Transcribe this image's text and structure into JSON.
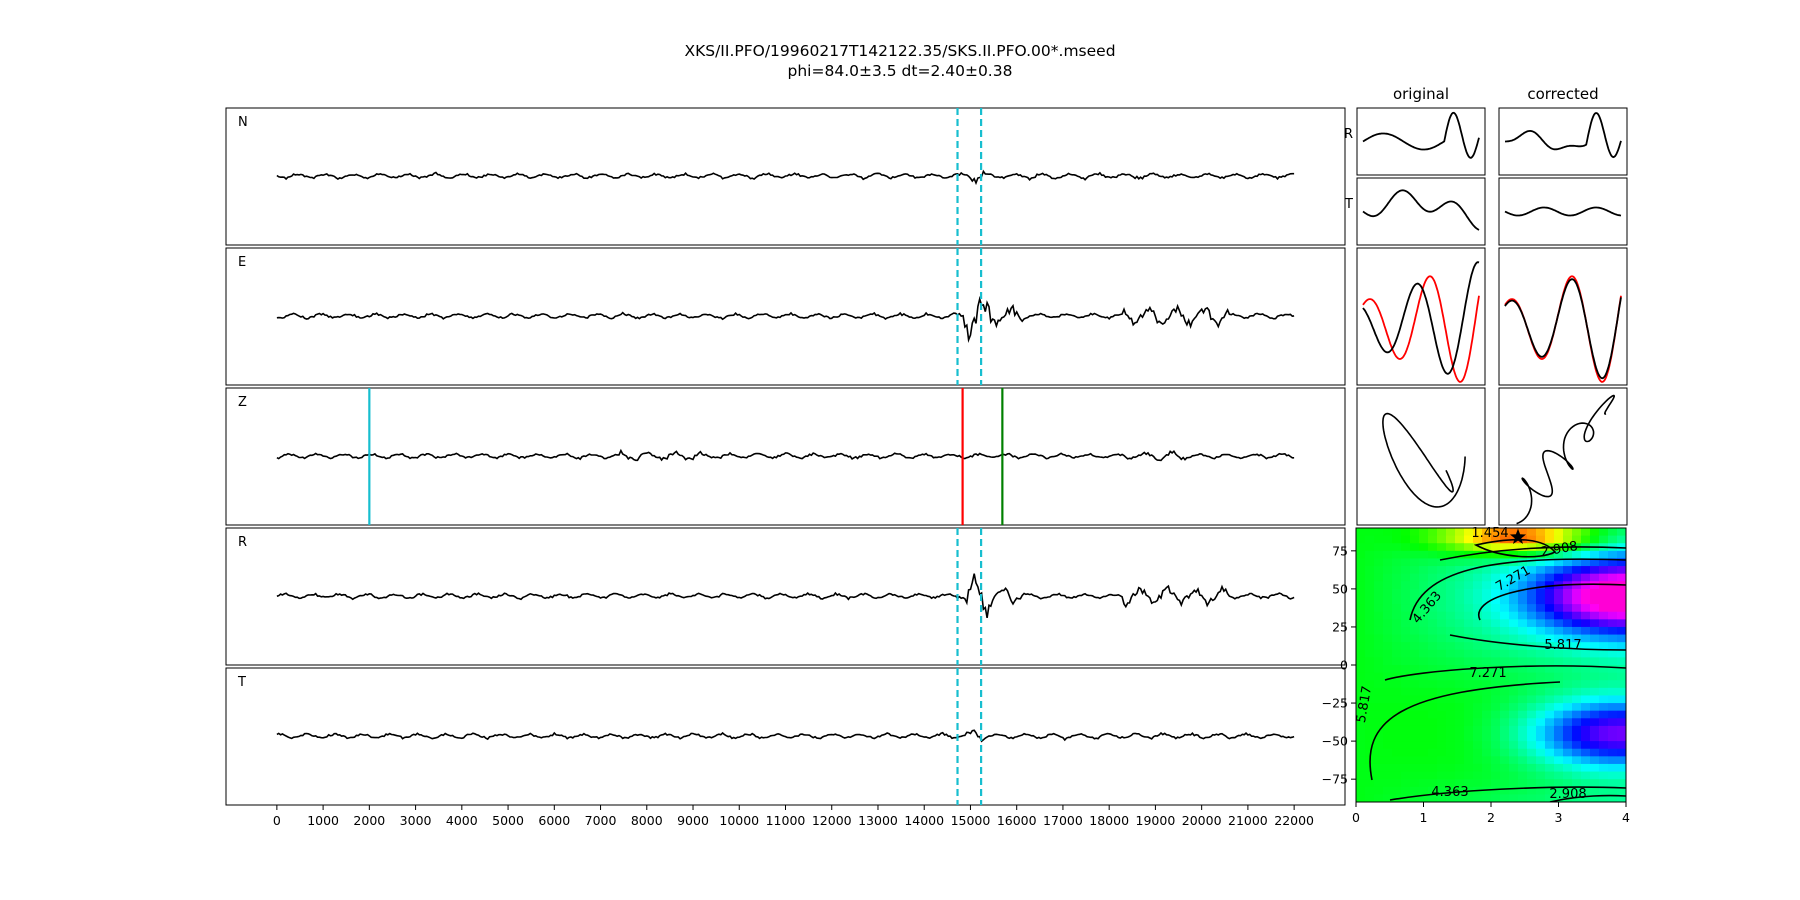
{
  "title": "XKS/II.PFO/19960217T142122.35/SKS.II.PFO.00*.mseed",
  "subtitle": "phi=84.0±3.5 dt=2.40±0.38",
  "chart_data": [
    {
      "type": "line",
      "name": "traces",
      "panels": [
        "N",
        "E",
        "Z",
        "R",
        "T"
      ],
      "xlim": [
        -1100,
        23100
      ],
      "xticks": [
        0,
        1000,
        2000,
        3000,
        4000,
        5000,
        6000,
        7000,
        8000,
        9000,
        10000,
        11000,
        12000,
        13000,
        14000,
        15000,
        16000,
        17000,
        18000,
        19000,
        20000,
        21000,
        22000
      ],
      "trace_range": [
        0,
        22000
      ],
      "window_lines": {
        "panels": [
          "N",
          "E",
          "R",
          "T"
        ],
        "x": [
          14720,
          15230
        ],
        "style": "dashed",
        "color": "#17becf"
      },
      "z_markers": [
        {
          "x": 2000,
          "color": "#17becf"
        },
        {
          "x": 14830,
          "color": "#ff0000"
        },
        {
          "x": 15690,
          "color": "#008000"
        }
      ],
      "trace_color": "#000000"
    },
    {
      "type": "line",
      "name": "particle-motion",
      "column_titles": [
        "original",
        "corrected"
      ],
      "row_labels": [
        "R",
        "T"
      ],
      "colors": {
        "black": "#000000",
        "red": "#ff0000"
      }
    },
    {
      "type": "heatmap",
      "name": "error-surface",
      "xlim": [
        0,
        4
      ],
      "ylim": [
        -90,
        90
      ],
      "xticks": [
        0,
        1,
        2,
        3,
        4
      ],
      "yticks": [
        75,
        50,
        25,
        0,
        -25,
        -50,
        -75
      ],
      "contour_labels": [
        "1.454",
        "2.908",
        "7.271",
        "4.363",
        "5.817",
        "7.271",
        "5.817",
        "4.363",
        "2.908"
      ],
      "best": {
        "dt": 2.4,
        "phi": 84.0
      },
      "colormap": "gist_rainbow"
    }
  ]
}
